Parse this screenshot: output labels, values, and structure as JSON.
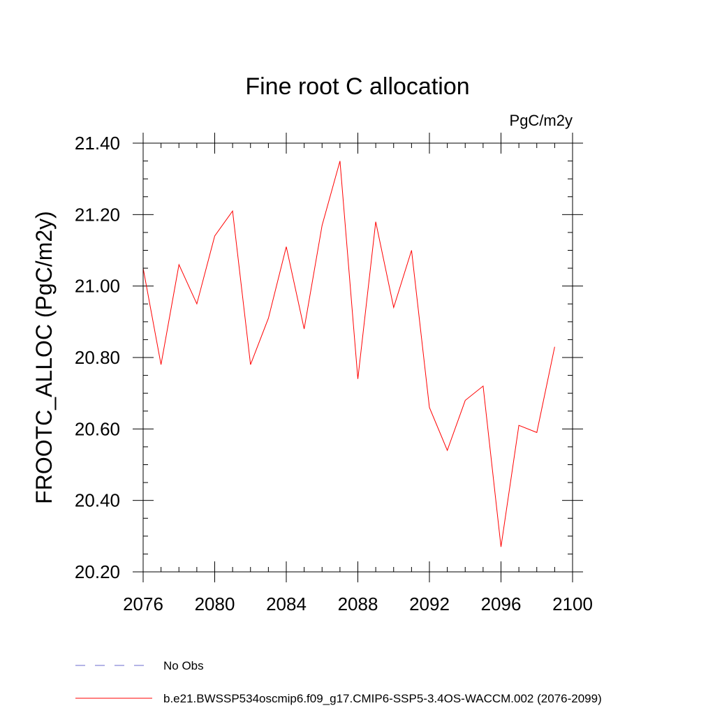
{
  "chart_data": {
    "type": "line",
    "title": "Fine root C allocation",
    "units": "PgC/m2y",
    "ylabel": "FROOTC_ALLOC  (PgC/m2y)",
    "xlabel": "",
    "xlim": [
      2076,
      2100
    ],
    "ylim": [
      20.2,
      21.4
    ],
    "x_ticks": [
      2076,
      2080,
      2084,
      2088,
      2092,
      2096,
      2100
    ],
    "x_tick_labels": [
      "2076",
      "2080",
      "2084",
      "2088",
      "2092",
      "2096",
      "2100"
    ],
    "y_ticks": [
      20.2,
      20.4,
      20.6,
      20.8,
      21.0,
      21.2,
      21.4
    ],
    "y_tick_labels": [
      "20.20",
      "20.40",
      "20.60",
      "20.80",
      "21.00",
      "21.20",
      "21.40"
    ],
    "grid": false,
    "legend_position": "bottom-left",
    "series": [
      {
        "name": "b.e21.BWSSP534oscmip6.f09_g17.CMIP6-SSP5-3.4OS-WACCM.002 (2076-2099)",
        "color": "#ff0000",
        "style": "solid",
        "x": [
          2076,
          2077,
          2078,
          2079,
          2080,
          2081,
          2082,
          2083,
          2084,
          2085,
          2086,
          2087,
          2088,
          2089,
          2090,
          2091,
          2092,
          2093,
          2094,
          2095,
          2096,
          2097,
          2098,
          2099
        ],
        "values": [
          21.05,
          20.78,
          21.06,
          20.95,
          21.14,
          21.21,
          20.78,
          20.91,
          21.11,
          20.88,
          21.17,
          21.35,
          20.74,
          21.18,
          20.94,
          21.1,
          20.66,
          20.54,
          20.68,
          20.72,
          20.27,
          20.61,
          20.59,
          20.83
        ]
      }
    ],
    "legend": [
      {
        "label": "No Obs",
        "color": "#6a6acd",
        "style": "dashed"
      },
      {
        "label": "b.e21.BWSSP534oscmip6.f09_g17.CMIP6-SSP5-3.4OS-WACCM.002 (2076-2099)",
        "color": "#ff0000",
        "style": "solid"
      }
    ]
  }
}
